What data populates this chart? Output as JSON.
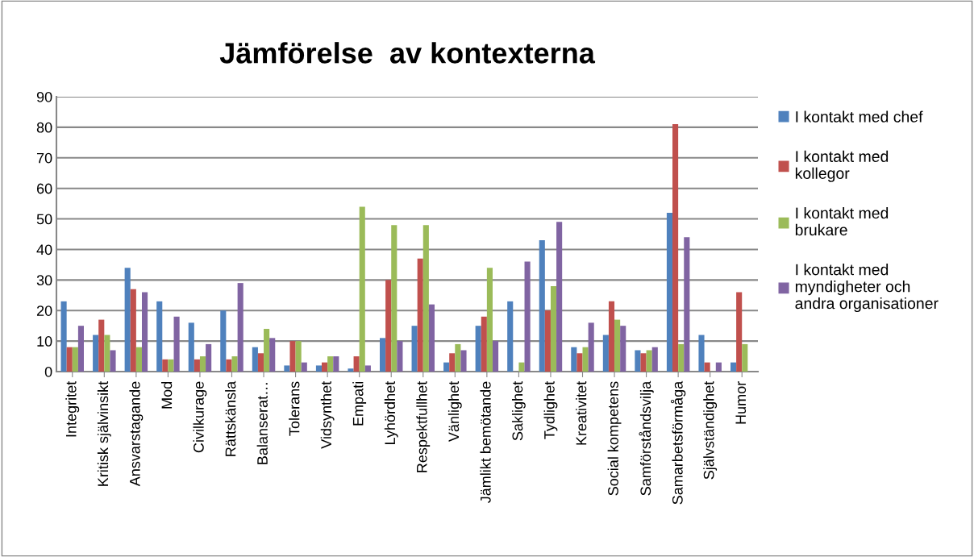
{
  "chart_data": {
    "type": "bar",
    "title": "Jämförelse  av kontexterna",
    "categories": [
      "Integritet",
      "Kritisk självinsikt",
      "Ansvarstagande",
      "Mod",
      "Civilkurage",
      "Rättskänsla",
      "Balanserat…",
      "Tolerans",
      "Vidsynthet",
      "Empati",
      "Lyhördhet",
      "Respektfullhet",
      "Vänlighet",
      "Jämlikt bemötande",
      "Saklighet",
      "Tydlighet",
      "Kreativitet",
      "Social kompetens",
      "Samförståndsvilja",
      "Samarbetsförmåga",
      "Självständighet",
      "Humor"
    ],
    "series": [
      {
        "name": "I kontakt med chef",
        "color": "#4f81bd",
        "values": [
          23,
          12,
          34,
          23,
          16,
          20,
          8,
          2,
          2,
          1,
          11,
          15,
          3,
          15,
          23,
          43,
          8,
          12,
          7,
          52,
          12,
          3
        ]
      },
      {
        "name": "I kontakt med\nkollegor",
        "color": "#c0504d",
        "values": [
          8,
          17,
          27,
          4,
          4,
          4,
          6,
          10,
          3,
          5,
          30,
          37,
          6,
          18,
          0,
          20,
          6,
          23,
          6,
          81,
          3,
          26
        ]
      },
      {
        "name": "I kontakt med\nbrukare",
        "color": "#9bbb59",
        "values": [
          8,
          12,
          8,
          4,
          5,
          5,
          14,
          10,
          5,
          54,
          48,
          48,
          9,
          34,
          3,
          28,
          8,
          17,
          7,
          9,
          0,
          9
        ]
      },
      {
        "name": "I kontakt med\nmyndigheter och\nandra organisationer",
        "color": "#8064a2",
        "values": [
          15,
          7,
          26,
          18,
          9,
          29,
          11,
          3,
          5,
          2,
          10,
          22,
          7,
          10,
          36,
          49,
          16,
          15,
          8,
          44,
          3,
          0
        ]
      }
    ],
    "ylim": [
      0,
      90
    ],
    "yticks": [
      0,
      10,
      20,
      30,
      40,
      50,
      60,
      70,
      80,
      90
    ],
    "grid": "y",
    "legend": "right"
  }
}
